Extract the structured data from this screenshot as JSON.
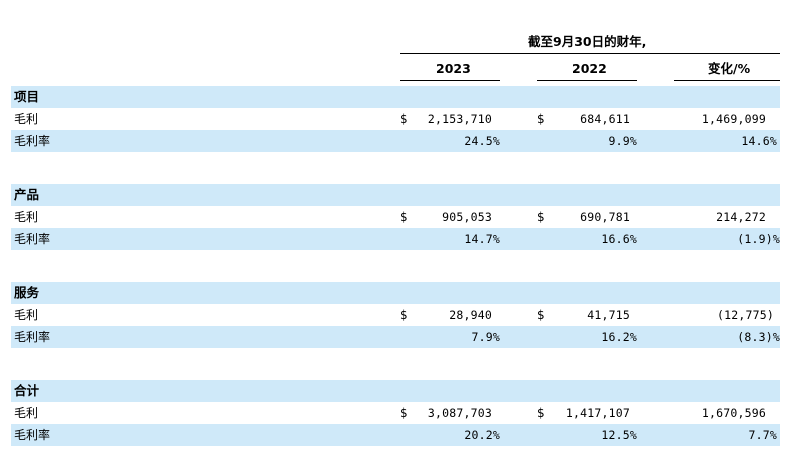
{
  "header": {
    "period_title": "截至9月30日的财年,",
    "col_2023": "2023",
    "col_2022": "2022",
    "col_change": "变化/%"
  },
  "currency_symbol": "$",
  "sections": [
    {
      "title": "项目",
      "gross_profit_label": "毛利",
      "margin_label": "毛利率",
      "gp_2023": "2,153,710",
      "gp_2022": "684,611",
      "gp_change": "1,469,099",
      "margin_2023": "24.5%",
      "margin_2022": "9.9%",
      "margin_change": "14.6%"
    },
    {
      "title": "产品",
      "gross_profit_label": "毛利",
      "margin_label": "毛利率",
      "gp_2023": "905,053",
      "gp_2022": "690,781",
      "gp_change": "214,272",
      "margin_2023": "14.7%",
      "margin_2022": "16.6%",
      "margin_change": "(1.9)%"
    },
    {
      "title": "服务",
      "gross_profit_label": "毛利",
      "margin_label": "毛利率",
      "gp_2023": "28,940",
      "gp_2022": "41,715",
      "gp_change": "(12,775)",
      "margin_2023": "7.9%",
      "margin_2022": "16.2%",
      "margin_change": "(8.3)%"
    },
    {
      "title": "合计",
      "gross_profit_label": "毛利",
      "margin_label": "毛利率",
      "gp_2023": "3,087,703",
      "gp_2022": "1,417,107",
      "gp_change": "1,670,596",
      "margin_2023": "20.2%",
      "margin_2022": "12.5%",
      "margin_change": "7.7%"
    }
  ]
}
